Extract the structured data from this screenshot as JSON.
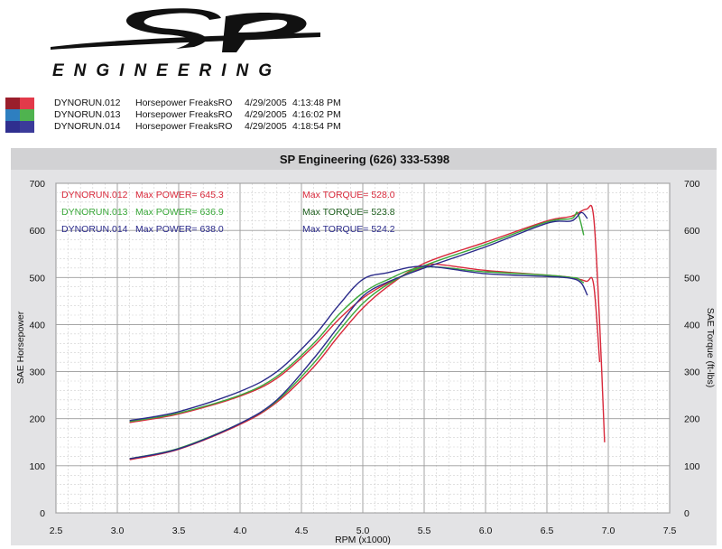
{
  "logo": {
    "mark": "SP",
    "wordmark": "ENGINEERING"
  },
  "runs": [
    {
      "name": "DYNORUN.012",
      "desc": "Horsepower FreaksRO",
      "date": "4/29/2005",
      "time": "4:13:48 PM",
      "color": "#d8283a",
      "swatch": [
        "#9a1e2c",
        "#e23a4a"
      ]
    },
    {
      "name": "DYNORUN.013",
      "desc": "Horsepower FreaksRO",
      "date": "4/29/2005",
      "time": "4:16:02 PM",
      "color": "#3aa83a",
      "swatch": [
        "#2e7fc0",
        "#4fb34f"
      ]
    },
    {
      "name": "DYNORUN.014",
      "desc": "Horsepower FreaksRO",
      "date": "4/29/2005",
      "time": "4:18:54 PM",
      "color": "#2a2a8a",
      "swatch": [
        "#2f2f8f",
        "#3b3b9a"
      ]
    }
  ],
  "chart_data": {
    "type": "line",
    "title": "SP Engineering (626) 333-5398",
    "xlabel": "RPM (x1000)",
    "ylabel": "SAE Horsepower",
    "ylabel_right": "SAE Torque (ft-lbs)",
    "xlim": [
      2.5,
      7.5
    ],
    "ylim": [
      0,
      700
    ],
    "x_ticks": [
      "2.5",
      "3.0",
      "3.5",
      "4.0",
      "4.5",
      "5.0",
      "5.5",
      "6.0",
      "6.5",
      "7.0",
      "7.5"
    ],
    "y_ticks": [
      "0",
      "100",
      "200",
      "300",
      "400",
      "500",
      "600",
      "700"
    ],
    "grid": true,
    "annotations": [
      {
        "run": "DYNORUN.012",
        "power": "Max POWER= 645.3",
        "torque": "Max TORQUE= 528.0"
      },
      {
        "run": "DYNORUN.013",
        "power": "Max POWER= 636.9",
        "torque": "Max TORQUE= 523.8"
      },
      {
        "run": "DYNORUN.014",
        "power": "Max POWER= 638.0",
        "torque": "Max TORQUE= 524.2"
      }
    ],
    "series": [
      {
        "name": "DYNORUN.012",
        "color": "#d8283a",
        "hp": [
          [
            3.1,
            113
          ],
          [
            3.5,
            135
          ],
          [
            4.0,
            188
          ],
          [
            4.3,
            235
          ],
          [
            4.6,
            310
          ],
          [
            4.8,
            375
          ],
          [
            5.0,
            435
          ],
          [
            5.2,
            480
          ],
          [
            5.5,
            530
          ],
          [
            6.0,
            575
          ],
          [
            6.5,
            620
          ],
          [
            6.7,
            630
          ],
          [
            6.82,
            645
          ],
          [
            6.88,
            630
          ],
          [
            6.93,
            400
          ],
          [
            6.97,
            150
          ]
        ],
        "tq": [
          [
            3.1,
            192
          ],
          [
            3.5,
            210
          ],
          [
            4.0,
            248
          ],
          [
            4.3,
            286
          ],
          [
            4.6,
            354
          ],
          [
            4.8,
            410
          ],
          [
            5.0,
            456
          ],
          [
            5.2,
            488
          ],
          [
            5.5,
            522
          ],
          [
            5.6,
            528
          ],
          [
            6.0,
            515
          ],
          [
            6.5,
            505
          ],
          [
            6.7,
            500
          ],
          [
            6.82,
            492
          ],
          [
            6.88,
            486
          ],
          [
            6.93,
            320
          ]
        ]
      },
      {
        "name": "DYNORUN.013",
        "color": "#3aa83a",
        "hp": [
          [
            3.1,
            115
          ],
          [
            3.5,
            137
          ],
          [
            4.0,
            190
          ],
          [
            4.3,
            238
          ],
          [
            4.6,
            318
          ],
          [
            4.8,
            385
          ],
          [
            5.0,
            445
          ],
          [
            5.2,
            485
          ],
          [
            5.5,
            525
          ],
          [
            6.0,
            570
          ],
          [
            6.5,
            618
          ],
          [
            6.7,
            625
          ],
          [
            6.75,
            637
          ],
          [
            6.8,
            590
          ]
        ],
        "tq": [
          [
            3.1,
            194
          ],
          [
            3.5,
            212
          ],
          [
            4.0,
            250
          ],
          [
            4.3,
            290
          ],
          [
            4.6,
            360
          ],
          [
            4.8,
            420
          ],
          [
            5.0,
            467
          ],
          [
            5.2,
            495
          ],
          [
            5.5,
            522
          ],
          [
            6.0,
            512
          ],
          [
            6.5,
            505
          ],
          [
            6.7,
            500
          ],
          [
            6.75,
            498
          ],
          [
            6.8,
            488
          ]
        ]
      },
      {
        "name": "DYNORUN.014",
        "color": "#2a2a8a",
        "hp": [
          [
            3.1,
            115
          ],
          [
            3.5,
            136
          ],
          [
            4.0,
            190
          ],
          [
            4.3,
            240
          ],
          [
            4.6,
            328
          ],
          [
            4.8,
            395
          ],
          [
            5.0,
            460
          ],
          [
            5.2,
            490
          ],
          [
            5.5,
            520
          ],
          [
            6.0,
            565
          ],
          [
            6.5,
            615
          ],
          [
            6.7,
            620
          ],
          [
            6.78,
            638
          ],
          [
            6.83,
            625
          ]
        ],
        "tq": [
          [
            3.1,
            196
          ],
          [
            3.5,
            215
          ],
          [
            4.0,
            258
          ],
          [
            4.3,
            300
          ],
          [
            4.6,
            375
          ],
          [
            4.8,
            440
          ],
          [
            5.0,
            496
          ],
          [
            5.2,
            510
          ],
          [
            5.5,
            524
          ],
          [
            6.0,
            508
          ],
          [
            6.5,
            502
          ],
          [
            6.7,
            498
          ],
          [
            6.78,
            488
          ],
          [
            6.83,
            462
          ]
        ]
      }
    ]
  }
}
